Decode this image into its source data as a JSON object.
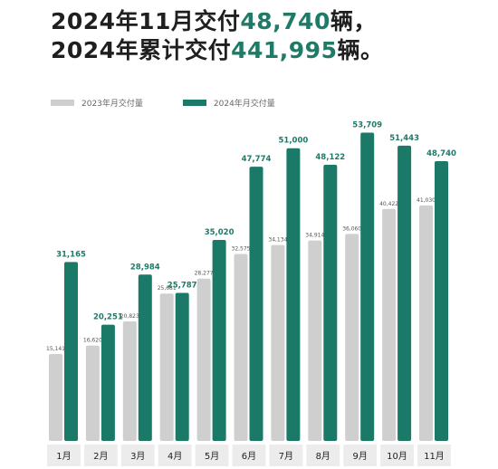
{
  "headline": {
    "line1_prefix": "2024年11月交付",
    "line1_number": "48,740",
    "line1_suffix": "辆，",
    "line2_prefix": "2024年累计交付",
    "line2_number": "441,995",
    "line2_suffix": "辆。"
  },
  "colors": {
    "series_2023": "#cfcfcf",
    "series_2024": "#1a7a67",
    "accent_text": "#1f7a68"
  },
  "chart_data": {
    "type": "bar",
    "categories": [
      "1月",
      "2月",
      "3月",
      "4月",
      "5月",
      "6月",
      "7月",
      "8月",
      "9月",
      "10月",
      "11月"
    ],
    "series": [
      {
        "name": "2023年月交付量",
        "values": [
          15141,
          16620,
          20823,
          25681,
          28277,
          32575,
          34134,
          34914,
          36060,
          40422,
          41030
        ],
        "labels": [
          "15,141",
          "16,620",
          "20,823",
          "25,681",
          "28,277",
          "32,575",
          "34,134",
          "34,914",
          "36,060",
          "40,422",
          "41,030"
        ]
      },
      {
        "name": "2024年月交付量",
        "values": [
          31165,
          20251,
          28984,
          25787,
          35020,
          47774,
          51000,
          48122,
          53709,
          51443,
          48740
        ],
        "labels": [
          "31,165",
          "20,251",
          "28,984",
          "25,787",
          "35,020",
          "47,774",
          "51,000",
          "48,122",
          "53,709",
          "51,443",
          "48,740"
        ]
      }
    ],
    "ylim": [
      0,
      56000
    ],
    "legend": "top-left",
    "grid": false
  }
}
